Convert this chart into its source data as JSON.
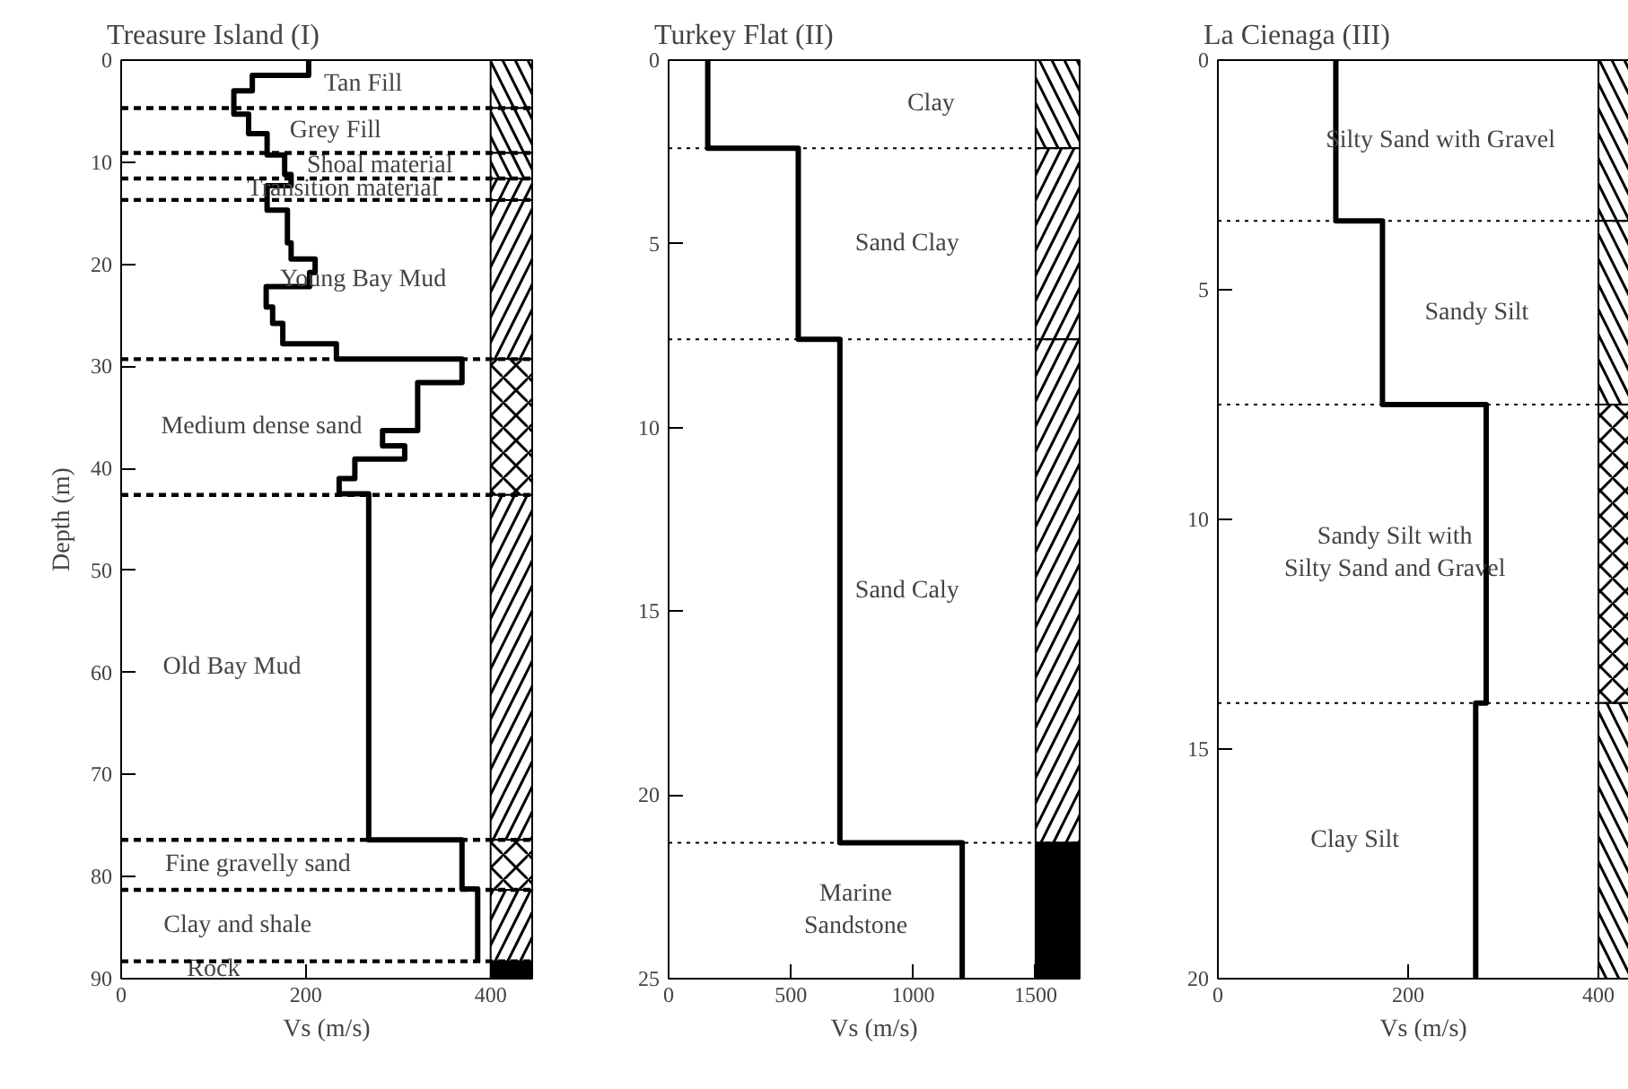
{
  "chart_data": [
    {
      "type": "line",
      "title": "Treasure Island (I)",
      "xlabel": "Vs (m/s)",
      "ylabel": "Depth (m)",
      "xlim": [
        0,
        445
      ],
      "xticks": [
        0,
        200,
        400
      ],
      "ylim": [
        90,
        0
      ],
      "yticks": [
        0,
        10,
        20,
        30,
        40,
        50,
        60,
        70,
        80,
        90
      ],
      "series": [
        {
          "color": "#000000",
          "x": [
            203,
            203,
            142,
            142,
            122,
            122,
            138,
            138,
            158,
            158,
            177,
            177,
            184,
            184,
            158,
            158,
            180,
            180,
            184,
            184,
            210,
            210,
            204,
            204,
            157,
            157,
            164,
            164,
            175,
            175,
            233,
            233,
            369,
            369,
            321,
            321,
            283,
            283,
            307,
            307,
            253,
            253,
            236,
            236,
            268,
            268,
            369,
            369,
            386,
            386
          ],
          "values": [
            0,
            1.5,
            1.5,
            3.0,
            3.0,
            5.3,
            5.3,
            7.2,
            7.2,
            9.3,
            9.3,
            11.2,
            11.2,
            12.3,
            12.3,
            14.7,
            14.7,
            17.9,
            17.9,
            19.5,
            19.5,
            20.8,
            20.8,
            22.2,
            22.2,
            24.2,
            24.2,
            25.8,
            25.8,
            27.8,
            27.8,
            29.3,
            29.3,
            31.6,
            31.6,
            36.3,
            36.3,
            37.8,
            37.8,
            39.1,
            39.1,
            41.0,
            41.0,
            42.5,
            42.5,
            76.4,
            76.4,
            81.2,
            81.2,
            88.4
          ]
        }
      ],
      "ref_lines": [
        {
          "axis": "y",
          "value": 4.7,
          "line_style": "dashed"
        },
        {
          "axis": "y",
          "value": 9.1,
          "line_style": "dashed"
        },
        {
          "axis": "y",
          "value": 11.6,
          "line_style": "dashed"
        },
        {
          "axis": "y",
          "value": 13.7,
          "line_style": "dashed"
        },
        {
          "axis": "y",
          "value": 29.3,
          "line_style": "dashed"
        },
        {
          "axis": "y",
          "value": 42.6,
          "line_style": "dashed"
        },
        {
          "axis": "y",
          "value": 76.4,
          "line_style": "dashed"
        },
        {
          "axis": "y",
          "value": 81.3,
          "line_style": "dashed"
        },
        {
          "axis": "y",
          "value": 88.3,
          "line_style": "dashed"
        }
      ],
      "bands": [
        {
          "axis": "y",
          "from": 0,
          "to": 4.7,
          "color": "#000000"
        },
        {
          "axis": "y",
          "from": 4.7,
          "to": 9.1,
          "color": "#000000"
        },
        {
          "axis": "y",
          "from": 9.1,
          "to": 11.6,
          "color": "#000000"
        },
        {
          "axis": "y",
          "from": 11.6,
          "to": 13.7,
          "color": "#000000"
        },
        {
          "axis": "y",
          "from": 13.7,
          "to": 29.3,
          "color": "#000000"
        },
        {
          "axis": "y",
          "from": 29.3,
          "to": 42.6,
          "color": "#000000"
        },
        {
          "axis": "y",
          "from": 42.6,
          "to": 76.4,
          "color": "#000000"
        },
        {
          "axis": "y",
          "from": 76.4,
          "to": 81.3,
          "color": "#000000"
        },
        {
          "axis": "y",
          "from": 81.3,
          "to": 88.3,
          "color": "#000000"
        },
        {
          "axis": "y",
          "from": 88.3,
          "to": 90,
          "color": "#000000"
        }
      ],
      "annotations": [
        "Tan Fill",
        "Grey Fill",
        "Shoal material",
        "Transition material",
        "Young Bay Mud",
        "Medium dense sand",
        "Old Bay Mud",
        "Fine gravelly sand",
        "Clay and shale",
        "Rock"
      ]
    },
    {
      "type": "line",
      "title": "Turkey Flat (II)",
      "xlabel": "Vs (m/s)",
      "xlim": [
        0,
        1680
      ],
      "xticks": [
        0,
        500,
        1000,
        1500
      ],
      "ylim": [
        25,
        0
      ],
      "yticks": [
        0,
        5,
        10,
        15,
        20,
        25
      ],
      "series": [
        {
          "color": "#000000",
          "x": [
            160,
            160,
            530,
            530,
            700,
            700,
            1200,
            1200
          ],
          "values": [
            0,
            2.4,
            2.4,
            7.6,
            7.6,
            21.3,
            21.3,
            25
          ]
        }
      ],
      "ref_lines": [
        {
          "axis": "y",
          "value": 2.4,
          "line_style": "dotted"
        },
        {
          "axis": "y",
          "value": 7.6,
          "line_style": "dotted"
        },
        {
          "axis": "y",
          "value": 21.3,
          "line_style": "dotted"
        }
      ],
      "bands": [
        {
          "axis": "y",
          "from": 0,
          "to": 2.4,
          "color": "#000000"
        },
        {
          "axis": "y",
          "from": 2.4,
          "to": 7.6,
          "color": "#000000"
        },
        {
          "axis": "y",
          "from": 7.6,
          "to": 21.3,
          "color": "#000000"
        },
        {
          "axis": "y",
          "from": 21.3,
          "to": 25,
          "color": "#000000"
        }
      ],
      "annotations": [
        "Clay",
        "Sand Clay",
        "Sand Caly",
        "Marine\nSandstone"
      ]
    },
    {
      "type": "line",
      "title": "La Cienaga (III)",
      "xlabel": "Vs (m/s)",
      "xlim": [
        0,
        432
      ],
      "xticks": [
        0,
        200,
        400
      ],
      "ylim": [
        20,
        0
      ],
      "yticks": [
        0,
        5,
        10,
        15,
        20
      ],
      "series": [
        {
          "color": "#000000",
          "x": [
            124,
            124,
            173,
            173,
            282,
            282,
            271,
            271
          ],
          "values": [
            0,
            3.5,
            3.5,
            7.5,
            7.5,
            14.0,
            14.0,
            20
          ]
        }
      ],
      "ref_lines": [
        {
          "axis": "y",
          "value": 3.5,
          "line_style": "dotted"
        },
        {
          "axis": "y",
          "value": 7.5,
          "line_style": "dotted"
        },
        {
          "axis": "y",
          "value": 14.0,
          "line_style": "dotted"
        }
      ],
      "bands": [
        {
          "axis": "y",
          "from": 0,
          "to": 3.5,
          "color": "#000000"
        },
        {
          "axis": "y",
          "from": 3.5,
          "to": 7.5,
          "color": "#000000"
        },
        {
          "axis": "y",
          "from": 7.5,
          "to": 14.0,
          "color": "#000000"
        },
        {
          "axis": "y",
          "from": 14.0,
          "to": 20,
          "color": "#000000"
        }
      ],
      "annotations": [
        "Silty Sand with Gravel",
        "Sandy Silt",
        "Sandy Silt with\nSilty Sand and Gravel",
        "Clay Silt"
      ]
    }
  ]
}
